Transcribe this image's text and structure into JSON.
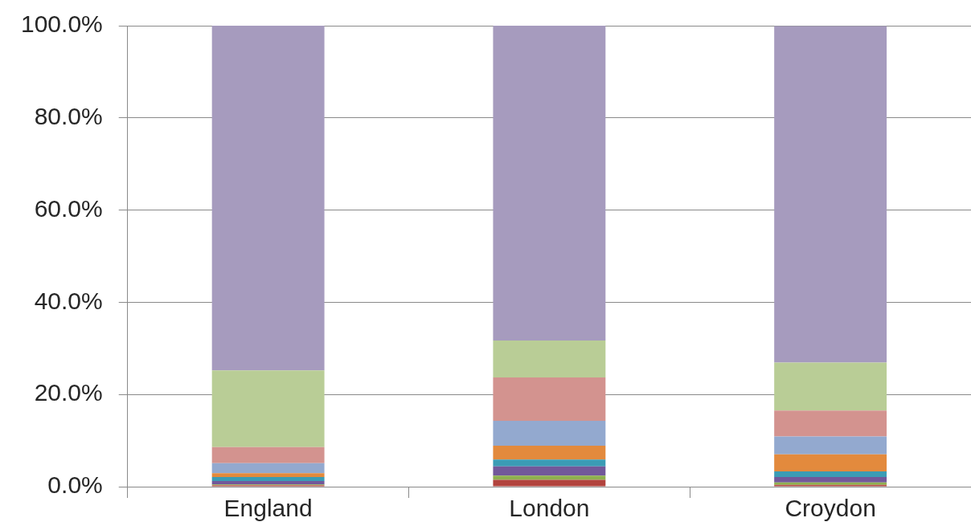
{
  "chart_data": {
    "type": "bar",
    "stacked": true,
    "categories": [
      "England",
      "London",
      "Croydon"
    ],
    "series": [
      {
        "color": "#b2433d",
        "values": [
          0.3,
          1.5,
          0.4
        ]
      },
      {
        "color": "#8fb04f",
        "values": [
          0.2,
          0.9,
          0.5
        ]
      },
      {
        "color": "#72589a",
        "values": [
          0.7,
          2.0,
          1.2
        ]
      },
      {
        "color": "#3b9cb5",
        "values": [
          0.9,
          1.5,
          1.2
        ]
      },
      {
        "color": "#e38a3d",
        "values": [
          0.8,
          3.0,
          3.7
        ]
      },
      {
        "color": "#93a9cf",
        "values": [
          2.2,
          5.4,
          3.9
        ]
      },
      {
        "color": "#d3938f",
        "values": [
          3.5,
          9.4,
          5.6
        ]
      },
      {
        "color": "#b9cd96",
        "values": [
          16.6,
          8.0,
          10.4
        ]
      },
      {
        "color": "#a69bbe",
        "values": [
          74.8,
          68.3,
          73.0
        ]
      }
    ],
    "ylim": [
      0,
      100
    ],
    "yticks": [
      {
        "value": 0,
        "label": "0.0%"
      },
      {
        "value": 20,
        "label": "20.0%"
      },
      {
        "value": 40,
        "label": "40.0%"
      },
      {
        "value": 60,
        "label": "60.0%"
      },
      {
        "value": 80,
        "label": "80.0%"
      },
      {
        "value": 100,
        "label": "100.0%"
      }
    ],
    "grid": "y"
  }
}
